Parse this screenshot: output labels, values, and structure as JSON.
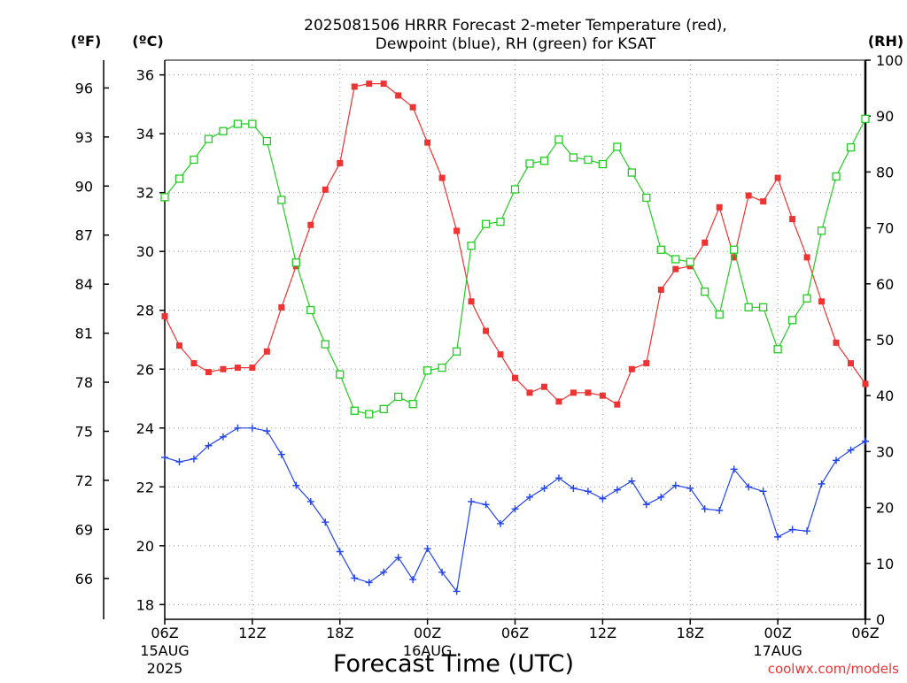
{
  "chart_data": {
    "type": "line",
    "title": [
      "2025081506 HRRR Forecast 2-meter Temperature (red),",
      "Dewpoint (blue), RH (green) for KSAT"
    ],
    "xlabel": "Forecast Time (UTC)",
    "unit_labels": {
      "fahrenheit": "(ºF)",
      "celsius": "(ºC)",
      "rh": "(RH)"
    },
    "credit": "coolwx.com/models",
    "x_range_hours": [
      0,
      48
    ],
    "x_ticks": [
      {
        "hour": 0,
        "label": "06Z",
        "date": "15AUG",
        "year": "2025"
      },
      {
        "hour": 6,
        "label": "12Z"
      },
      {
        "hour": 12,
        "label": "18Z"
      },
      {
        "hour": 18,
        "label": "00Z",
        "date": "16AUG"
      },
      {
        "hour": 24,
        "label": "06Z"
      },
      {
        "hour": 30,
        "label": "12Z"
      },
      {
        "hour": 36,
        "label": "18Z"
      },
      {
        "hour": 42,
        "label": "00Z",
        "date": "17AUG"
      },
      {
        "hour": 48,
        "label": "06Z"
      }
    ],
    "y_celsius": {
      "range": [
        17.5,
        36.5
      ],
      "ticks": [
        18,
        20,
        22,
        24,
        26,
        28,
        30,
        32,
        34,
        36
      ]
    },
    "y_fahrenheit": {
      "ticks": [
        66,
        69,
        72,
        75,
        78,
        81,
        84,
        87,
        90,
        93,
        96
      ]
    },
    "y_rh": {
      "range": [
        0,
        100
      ],
      "ticks": [
        0,
        10,
        20,
        30,
        40,
        50,
        60,
        70,
        80,
        90,
        100
      ]
    },
    "grid": true,
    "series": [
      {
        "name": "2-meter Temperature",
        "color": "#ee3333",
        "marker": "filled-square",
        "axis": "celsius",
        "values": [
          27.8,
          26.8,
          26.2,
          25.9,
          26.0,
          26.05,
          26.05,
          26.6,
          28.1,
          29.5,
          30.9,
          32.1,
          33.0,
          35.6,
          35.7,
          35.7,
          35.3,
          34.9,
          33.7,
          32.5,
          30.7,
          28.3,
          27.3,
          26.5,
          25.7,
          25.2,
          25.4,
          24.9,
          25.2,
          25.2,
          25.1,
          24.8,
          26.0,
          26.2,
          28.7,
          29.4,
          29.5,
          30.3,
          31.5,
          29.8,
          31.9,
          31.7,
          32.5,
          31.1,
          29.8,
          28.3,
          26.9,
          26.2,
          25.5
        ]
      },
      {
        "name": "Dewpoint",
        "color": "#2244ee",
        "marker": "plus",
        "axis": "celsius",
        "values": [
          23.0,
          22.85,
          22.95,
          23.4,
          23.7,
          24.0,
          24.0,
          23.9,
          23.1,
          22.05,
          21.5,
          20.8,
          19.8,
          18.9,
          18.75,
          19.1,
          19.6,
          18.85,
          19.9,
          19.1,
          18.45,
          21.5,
          21.4,
          20.75,
          21.25,
          21.65,
          21.95,
          22.3,
          21.95,
          21.85,
          21.6,
          21.9,
          22.2,
          21.4,
          21.65,
          22.05,
          21.95,
          21.25,
          21.2,
          22.6,
          22.0,
          21.85,
          20.3,
          20.55,
          20.5,
          22.1,
          22.9,
          23.25,
          23.55
        ]
      },
      {
        "name": "RH",
        "color": "#22cc22",
        "marker": "open-square",
        "axis": "rh",
        "values": [
          75.5,
          78.8,
          82.2,
          85.9,
          87.3,
          88.6,
          88.6,
          85.5,
          75.0,
          63.8,
          55.3,
          49.2,
          43.8,
          37.3,
          36.7,
          37.6,
          39.8,
          38.5,
          44.5,
          45.0,
          47.9,
          66.8,
          70.7,
          71.1,
          76.9,
          81.5,
          82.0,
          85.8,
          82.6,
          82.2,
          81.4,
          84.5,
          79.9,
          75.4,
          66.1,
          64.4,
          63.9,
          58.6,
          54.5,
          66.1,
          55.8,
          55.8,
          48.3,
          53.5,
          57.4,
          69.5,
          79.2,
          84.4,
          89.5
        ]
      }
    ]
  }
}
